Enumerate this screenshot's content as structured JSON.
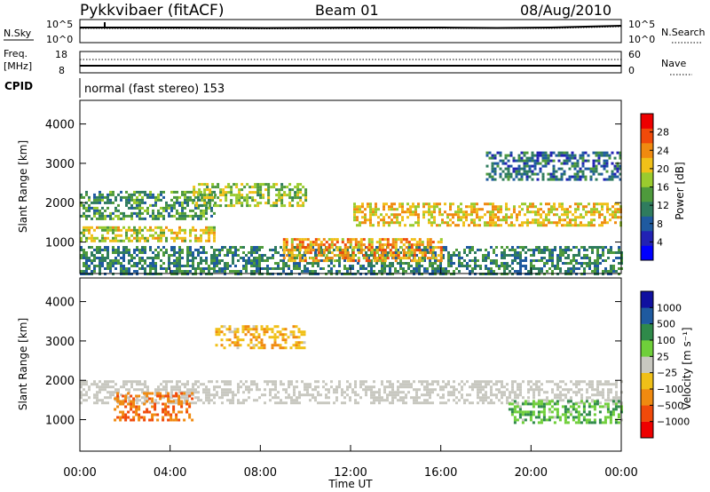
{
  "header": {
    "station": "Pykkvibaer (fitACF)",
    "beam": "Beam 01",
    "date": "08/Aug/2010"
  },
  "noise_panel": {
    "left_label": "N.Sky",
    "right_label": "N.Search",
    "left_ticks": [
      "10^5",
      "10^0"
    ],
    "right_ticks": [
      "10^5",
      "10^0"
    ]
  },
  "freq_panel": {
    "left_label_line1": "Freq.",
    "left_label_line2": "[MHz]",
    "right_label": "Nave",
    "left_ticks": [
      "18",
      "8"
    ],
    "right_ticks": [
      "60",
      "0"
    ]
  },
  "cpid": {
    "label": "CPID",
    "value": "normal (fast stereo) 153"
  },
  "colors": {
    "power": [
      "#0000ff",
      "#2222b4",
      "#1f5aa0",
      "#2f7c5e",
      "#4e9a3c",
      "#9acb2e",
      "#f0c018",
      "#f08a10",
      "#f04a0a",
      "#ee0000"
    ],
    "velocity": [
      "#1010a0",
      "#1f5aa0",
      "#2f8a4a",
      "#6fcf3a",
      "#c8c8c0",
      "#f0c018",
      "#f08a10",
      "#f04a0a",
      "#ee0000"
    ],
    "ground_scatter": "#c8c8c0"
  },
  "chart_data": [
    {
      "type": "heatmap",
      "title": "Power",
      "ylabel": "Slant Range [km]",
      "ylim": [
        200,
        4600
      ],
      "yticks": [
        "1000",
        "2000",
        "3000",
        "4000"
      ],
      "xlim": [
        "00:00",
        "24:00"
      ],
      "colorbar": {
        "label": "Power [dB]",
        "ticks": [
          "4",
          "8",
          "12",
          "16",
          "20",
          "24",
          "28"
        ],
        "range": [
          0,
          30
        ]
      },
      "features": [
        {
          "hours": [
            0.0,
            24.0
          ],
          "range_km": [
            200,
            900
          ],
          "level_dB": 10
        },
        {
          "hours": [
            0.0,
            6.0
          ],
          "range_km": [
            1000,
            1400
          ],
          "level_dB": 18
        },
        {
          "hours": [
            0.0,
            6.0
          ],
          "range_km": [
            1600,
            2300
          ],
          "level_dB": 12
        },
        {
          "hours": [
            5.0,
            10.0
          ],
          "range_km": [
            1900,
            2500
          ],
          "level_dB": 16
        },
        {
          "hours": [
            9.0,
            16.0
          ],
          "range_km": [
            500,
            1100
          ],
          "level_dB": 22
        },
        {
          "hours": [
            12.0,
            24.0
          ],
          "range_km": [
            1400,
            2000
          ],
          "level_dB": 20
        },
        {
          "hours": [
            18.0,
            24.0
          ],
          "range_km": [
            2600,
            3300
          ],
          "level_dB": 8
        }
      ]
    },
    {
      "type": "heatmap",
      "title": "Velocity",
      "ylabel": "Slant Range [km]",
      "xlabel": "Time UT",
      "ylim": [
        200,
        4600
      ],
      "yticks": [
        "1000",
        "2000",
        "3000",
        "4000"
      ],
      "xticks": [
        "00:00",
        "04:00",
        "08:00",
        "12:00",
        "16:00",
        "20:00",
        "00:00"
      ],
      "colorbar": {
        "label": "Velocity [m s⁻¹]",
        "ticks": [
          "1000",
          "500",
          "100",
          "25",
          "−25",
          "−100",
          "−500",
          "−1000"
        ],
        "range": [
          -1000,
          1000
        ]
      },
      "features": [
        {
          "hours": [
            0.0,
            24.0
          ],
          "range_km": [
            1400,
            2000
          ],
          "velocity_ms": 0,
          "ground_scatter": true
        },
        {
          "hours": [
            1.5,
            5.0
          ],
          "range_km": [
            1000,
            1700
          ],
          "velocity_ms": -600
        },
        {
          "hours": [
            6.0,
            10.0
          ],
          "range_km": [
            2800,
            3400
          ],
          "velocity_ms": -300
        },
        {
          "hours": [
            19.0,
            24.0
          ],
          "range_km": [
            900,
            1500
          ],
          "velocity_ms": 300
        }
      ]
    }
  ]
}
